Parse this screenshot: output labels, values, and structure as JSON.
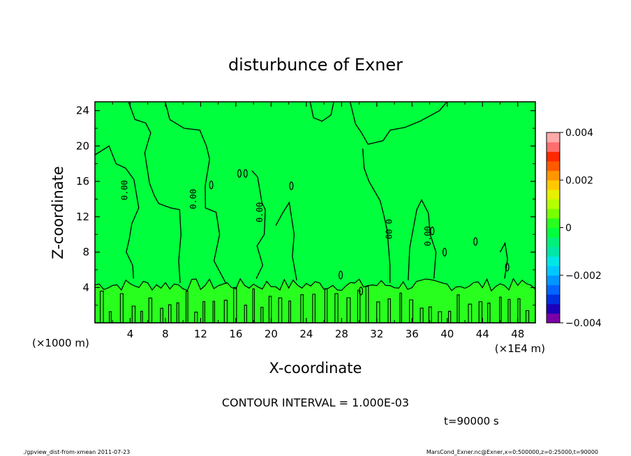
{
  "chart_data": {
    "type": "heatmap",
    "title": "disturbunce of Exner",
    "xlabel": "X-coordinate",
    "ylabel": "Z-coordinate",
    "x_unit_left": "(×1000 m)",
    "x_unit_right": "(×1E4 m)",
    "xlim": [
      0,
      50
    ],
    "ylim": [
      0,
      25
    ],
    "x_ticks": [
      "4",
      "8",
      "12",
      "16",
      "20",
      "24",
      "28",
      "32",
      "36",
      "40",
      "44",
      "48"
    ],
    "y_ticks": [
      "4",
      "8",
      "12",
      "16",
      "20",
      "24"
    ],
    "colorbar": {
      "ticks": [
        "0.004",
        "0.002",
        "0",
        "−0.002",
        "−0.004"
      ],
      "range": [
        -0.004,
        0.004
      ],
      "colors": [
        "#7a00a6",
        "#1c00b8",
        "#0030e0",
        "#0066ff",
        "#0096ff",
        "#00c8ff",
        "#00e6e6",
        "#00e6a8",
        "#00f07a",
        "#00ff3c",
        "#28ff1e",
        "#78ff00",
        "#b4ff00",
        "#e6f000",
        "#ffc800",
        "#ff9600",
        "#ff5a00",
        "#ff2800",
        "#ff6e6e",
        "#ffaaaa"
      ]
    },
    "contour_labels": [
      "0.00",
      "0.00",
      "0.00",
      "0.00",
      "0.00"
    ],
    "contour_interval": "CONTOUR INTERVAL = 1.000E-03",
    "time_label": "t=90000 s",
    "fill_color_main": "#00ff3c",
    "fill_color_lower": "#28ff1e"
  },
  "footer": {
    "left": "./gpview_dist-from-xmean  2011-07-23",
    "right": "MarsCond_Exner.nc@Exner,x=0:500000,z=0:25000,t=90000"
  }
}
